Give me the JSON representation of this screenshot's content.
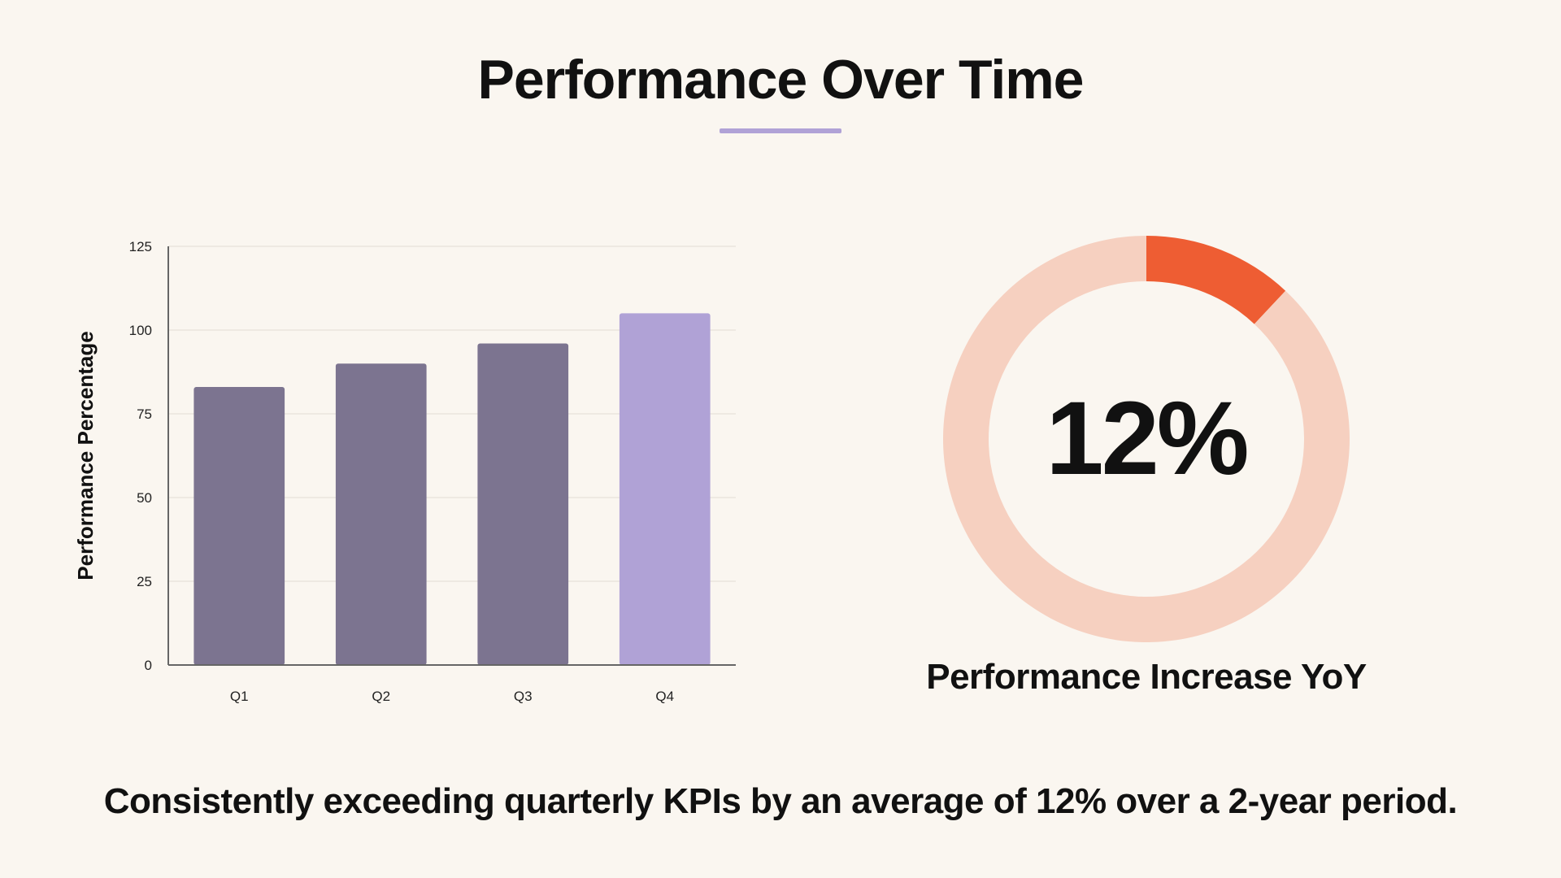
{
  "title": "Performance Over Time",
  "kpi": {
    "value": "12%",
    "label": "Performance Increase YoY"
  },
  "footer_text": "Consistently exceeding quarterly KPIs by an average of 12% over a 2-year period.",
  "colors": {
    "background": "#FAF6F0",
    "accent_underline": "#B0A2D6",
    "bar_default": "#7C7490",
    "bar_highlight": "#B0A2D6",
    "donut_track": "#F6D0C0",
    "donut_fill": "#EE5D33",
    "gridline": "#E6E1DA",
    "axis": "#666666"
  },
  "chart_data": [
    {
      "type": "bar",
      "title": "",
      "xlabel": "",
      "ylabel": "Performance Percentage",
      "categories": [
        "Q1",
        "Q2",
        "Q3",
        "Q4"
      ],
      "values": [
        83,
        90,
        96,
        105
      ],
      "highlight_index": 3,
      "ylim": [
        0,
        125
      ],
      "yticks": [
        0,
        25,
        50,
        75,
        100,
        125
      ],
      "grid": true,
      "legend": "none"
    },
    {
      "type": "pie",
      "variant": "donut",
      "title": "",
      "slices": [
        {
          "value": 12,
          "role": "highlight"
        },
        {
          "value": 88,
          "role": "remainder"
        }
      ],
      "legend": "none"
    }
  ]
}
